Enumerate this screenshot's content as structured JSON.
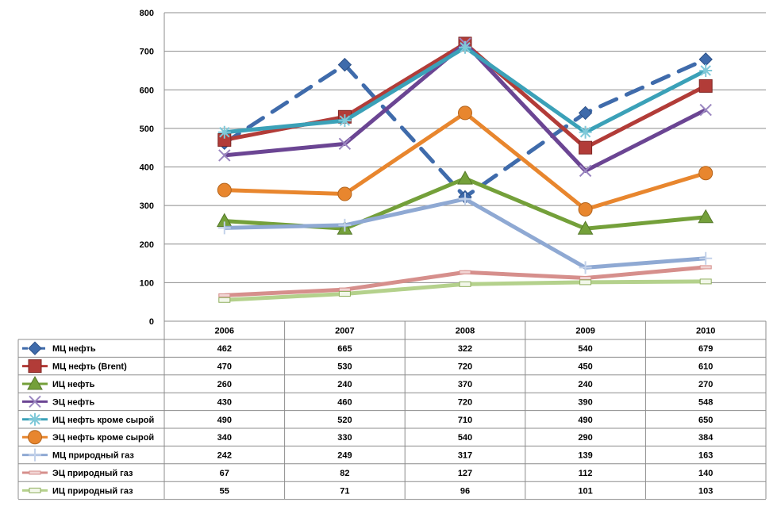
{
  "chart_data": {
    "type": "line",
    "categories": [
      "2006",
      "2007",
      "2008",
      "2009",
      "2010"
    ],
    "ylim": [
      0,
      800
    ],
    "yticks": [
      0,
      100,
      200,
      300,
      400,
      500,
      600,
      700,
      800
    ],
    "grid": "horizontal",
    "legend": "data table below chart",
    "series": [
      {
        "name": "МЦ нефть",
        "values": [
          462,
          665,
          322,
          540,
          679
        ],
        "color": "#3f6bab",
        "marker": "diamond",
        "dashed": true
      },
      {
        "name": "МЦ нефть (Brent)",
        "values": [
          470,
          530,
          720,
          450,
          610
        ],
        "color": "#b23c38",
        "marker": "square",
        "dashed": false
      },
      {
        "name": "ИЦ нефть",
        "values": [
          260,
          240,
          370,
          240,
          270
        ],
        "color": "#74a03a",
        "marker": "triangle",
        "dashed": false
      },
      {
        "name": "ЭЦ нефть",
        "values": [
          430,
          460,
          720,
          390,
          548
        ],
        "color": "#6b4593",
        "marker": "x",
        "dashed": false
      },
      {
        "name": "ИЦ нефть кроме сырой",
        "values": [
          490,
          520,
          710,
          490,
          650
        ],
        "color": "#3ba1b8",
        "marker": "star",
        "dashed": false
      },
      {
        "name": "ЭЦ нефть кроме сырой",
        "values": [
          340,
          330,
          540,
          290,
          384
        ],
        "color": "#e8862e",
        "marker": "circle",
        "dashed": false
      },
      {
        "name": "МЦ природный газ",
        "values": [
          242,
          249,
          317,
          139,
          163
        ],
        "color": "#8fa9d3",
        "marker": "plus",
        "dashed": false
      },
      {
        "name": "ЭЦ природный газ",
        "values": [
          67,
          82,
          127,
          112,
          140
        ],
        "color": "#d68f8c",
        "marker": "dash",
        "dashed": false
      },
      {
        "name": "ИЦ природный газ",
        "values": [
          55,
          71,
          96,
          101,
          103
        ],
        "color": "#b4d18c",
        "marker": "rect",
        "dashed": false
      }
    ]
  }
}
